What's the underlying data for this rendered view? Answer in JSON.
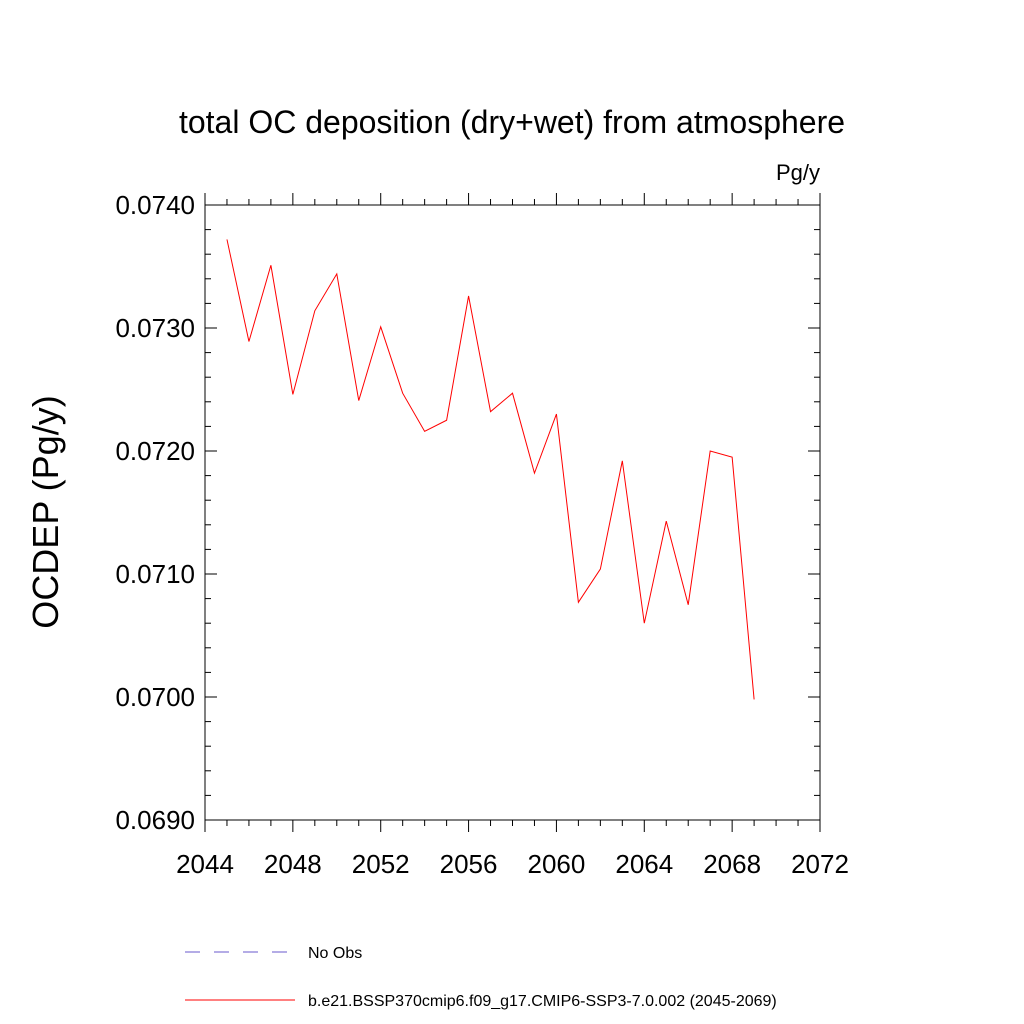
{
  "chart_data": {
    "type": "line",
    "title": "total OC deposition (dry+wet) from atmosphere",
    "units": "Pg/y",
    "ylabel": "OCDEP  (Pg/y)",
    "xlabel": "",
    "xlim": [
      2044,
      2072
    ],
    "ylim": [
      0.069,
      0.074
    ],
    "xticks": [
      2044,
      2048,
      2052,
      2056,
      2060,
      2064,
      2068,
      2072
    ],
    "xtick_labels": [
      "2044",
      "2048",
      "2052",
      "2056",
      "2060",
      "2064",
      "2068",
      "2072"
    ],
    "yticks": [
      0.069,
      0.07,
      0.071,
      0.072,
      0.073,
      0.074
    ],
    "ytick_labels": [
      "0.0690",
      "0.0700",
      "0.0710",
      "0.0720",
      "0.0730",
      "0.0740"
    ],
    "grid": false,
    "series": [
      {
        "name": "b.e21.BSSP370cmip6.f09_g17.CMIP6-SSP3-7.0.002 (2045-2069)",
        "color": "#ff0000",
        "style": "solid",
        "x": [
          2045,
          2046,
          2047,
          2048,
          2049,
          2050,
          2051,
          2052,
          2053,
          2054,
          2055,
          2056,
          2057,
          2058,
          2059,
          2060,
          2061,
          2062,
          2063,
          2064,
          2065,
          2066,
          2067,
          2068,
          2069
        ],
        "values": [
          0.07372,
          0.07289,
          0.07351,
          0.07246,
          0.07314,
          0.07344,
          0.07241,
          0.07301,
          0.07247,
          0.07216,
          0.07225,
          0.07326,
          0.07232,
          0.07247,
          0.07182,
          0.0723,
          0.07077,
          0.07104,
          0.07192,
          0.0706,
          0.07143,
          0.07075,
          0.072,
          0.07195,
          0.06998
        ]
      }
    ],
    "legend": [
      {
        "label": "No Obs",
        "color": "#6a5acd",
        "style": "dashed"
      },
      {
        "label": "b.e21.BSSP370cmip6.f09_g17.CMIP6-SSP3-7.0.002 (2045-2069)",
        "color": "#ff0000",
        "style": "solid"
      }
    ],
    "legend_position": "bottom"
  }
}
